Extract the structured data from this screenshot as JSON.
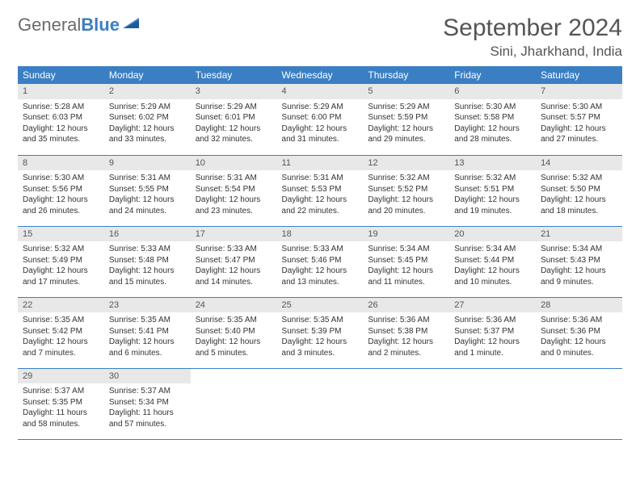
{
  "logo": {
    "text_gray": "General",
    "text_blue": "Blue"
  },
  "header": {
    "month_title": "September 2024",
    "location": "Sini, Jharkhand, India"
  },
  "colors": {
    "header_bg": "#3a7fc4",
    "header_text": "#ffffff",
    "daynum_bg": "#e8e8e8",
    "border": "#3a7fc4",
    "logo_gray": "#6b6b6b",
    "logo_blue": "#3a7fc4"
  },
  "weekdays": [
    "Sunday",
    "Monday",
    "Tuesday",
    "Wednesday",
    "Thursday",
    "Friday",
    "Saturday"
  ],
  "weeks": [
    [
      {
        "day": "1",
        "sunrise": "Sunrise: 5:28 AM",
        "sunset": "Sunset: 6:03 PM",
        "daylight": "Daylight: 12 hours and 35 minutes."
      },
      {
        "day": "2",
        "sunrise": "Sunrise: 5:29 AM",
        "sunset": "Sunset: 6:02 PM",
        "daylight": "Daylight: 12 hours and 33 minutes."
      },
      {
        "day": "3",
        "sunrise": "Sunrise: 5:29 AM",
        "sunset": "Sunset: 6:01 PM",
        "daylight": "Daylight: 12 hours and 32 minutes."
      },
      {
        "day": "4",
        "sunrise": "Sunrise: 5:29 AM",
        "sunset": "Sunset: 6:00 PM",
        "daylight": "Daylight: 12 hours and 31 minutes."
      },
      {
        "day": "5",
        "sunrise": "Sunrise: 5:29 AM",
        "sunset": "Sunset: 5:59 PM",
        "daylight": "Daylight: 12 hours and 29 minutes."
      },
      {
        "day": "6",
        "sunrise": "Sunrise: 5:30 AM",
        "sunset": "Sunset: 5:58 PM",
        "daylight": "Daylight: 12 hours and 28 minutes."
      },
      {
        "day": "7",
        "sunrise": "Sunrise: 5:30 AM",
        "sunset": "Sunset: 5:57 PM",
        "daylight": "Daylight: 12 hours and 27 minutes."
      }
    ],
    [
      {
        "day": "8",
        "sunrise": "Sunrise: 5:30 AM",
        "sunset": "Sunset: 5:56 PM",
        "daylight": "Daylight: 12 hours and 26 minutes."
      },
      {
        "day": "9",
        "sunrise": "Sunrise: 5:31 AM",
        "sunset": "Sunset: 5:55 PM",
        "daylight": "Daylight: 12 hours and 24 minutes."
      },
      {
        "day": "10",
        "sunrise": "Sunrise: 5:31 AM",
        "sunset": "Sunset: 5:54 PM",
        "daylight": "Daylight: 12 hours and 23 minutes."
      },
      {
        "day": "11",
        "sunrise": "Sunrise: 5:31 AM",
        "sunset": "Sunset: 5:53 PM",
        "daylight": "Daylight: 12 hours and 22 minutes."
      },
      {
        "day": "12",
        "sunrise": "Sunrise: 5:32 AM",
        "sunset": "Sunset: 5:52 PM",
        "daylight": "Daylight: 12 hours and 20 minutes."
      },
      {
        "day": "13",
        "sunrise": "Sunrise: 5:32 AM",
        "sunset": "Sunset: 5:51 PM",
        "daylight": "Daylight: 12 hours and 19 minutes."
      },
      {
        "day": "14",
        "sunrise": "Sunrise: 5:32 AM",
        "sunset": "Sunset: 5:50 PM",
        "daylight": "Daylight: 12 hours and 18 minutes."
      }
    ],
    [
      {
        "day": "15",
        "sunrise": "Sunrise: 5:32 AM",
        "sunset": "Sunset: 5:49 PM",
        "daylight": "Daylight: 12 hours and 17 minutes."
      },
      {
        "day": "16",
        "sunrise": "Sunrise: 5:33 AM",
        "sunset": "Sunset: 5:48 PM",
        "daylight": "Daylight: 12 hours and 15 minutes."
      },
      {
        "day": "17",
        "sunrise": "Sunrise: 5:33 AM",
        "sunset": "Sunset: 5:47 PM",
        "daylight": "Daylight: 12 hours and 14 minutes."
      },
      {
        "day": "18",
        "sunrise": "Sunrise: 5:33 AM",
        "sunset": "Sunset: 5:46 PM",
        "daylight": "Daylight: 12 hours and 13 minutes."
      },
      {
        "day": "19",
        "sunrise": "Sunrise: 5:34 AM",
        "sunset": "Sunset: 5:45 PM",
        "daylight": "Daylight: 12 hours and 11 minutes."
      },
      {
        "day": "20",
        "sunrise": "Sunrise: 5:34 AM",
        "sunset": "Sunset: 5:44 PM",
        "daylight": "Daylight: 12 hours and 10 minutes."
      },
      {
        "day": "21",
        "sunrise": "Sunrise: 5:34 AM",
        "sunset": "Sunset: 5:43 PM",
        "daylight": "Daylight: 12 hours and 9 minutes."
      }
    ],
    [
      {
        "day": "22",
        "sunrise": "Sunrise: 5:35 AM",
        "sunset": "Sunset: 5:42 PM",
        "daylight": "Daylight: 12 hours and 7 minutes."
      },
      {
        "day": "23",
        "sunrise": "Sunrise: 5:35 AM",
        "sunset": "Sunset: 5:41 PM",
        "daylight": "Daylight: 12 hours and 6 minutes."
      },
      {
        "day": "24",
        "sunrise": "Sunrise: 5:35 AM",
        "sunset": "Sunset: 5:40 PM",
        "daylight": "Daylight: 12 hours and 5 minutes."
      },
      {
        "day": "25",
        "sunrise": "Sunrise: 5:35 AM",
        "sunset": "Sunset: 5:39 PM",
        "daylight": "Daylight: 12 hours and 3 minutes."
      },
      {
        "day": "26",
        "sunrise": "Sunrise: 5:36 AM",
        "sunset": "Sunset: 5:38 PM",
        "daylight": "Daylight: 12 hours and 2 minutes."
      },
      {
        "day": "27",
        "sunrise": "Sunrise: 5:36 AM",
        "sunset": "Sunset: 5:37 PM",
        "daylight": "Daylight: 12 hours and 1 minute."
      },
      {
        "day": "28",
        "sunrise": "Sunrise: 5:36 AM",
        "sunset": "Sunset: 5:36 PM",
        "daylight": "Daylight: 12 hours and 0 minutes."
      }
    ],
    [
      {
        "day": "29",
        "sunrise": "Sunrise: 5:37 AM",
        "sunset": "Sunset: 5:35 PM",
        "daylight": "Daylight: 11 hours and 58 minutes."
      },
      {
        "day": "30",
        "sunrise": "Sunrise: 5:37 AM",
        "sunset": "Sunset: 5:34 PM",
        "daylight": "Daylight: 11 hours and 57 minutes."
      },
      null,
      null,
      null,
      null,
      null
    ]
  ]
}
